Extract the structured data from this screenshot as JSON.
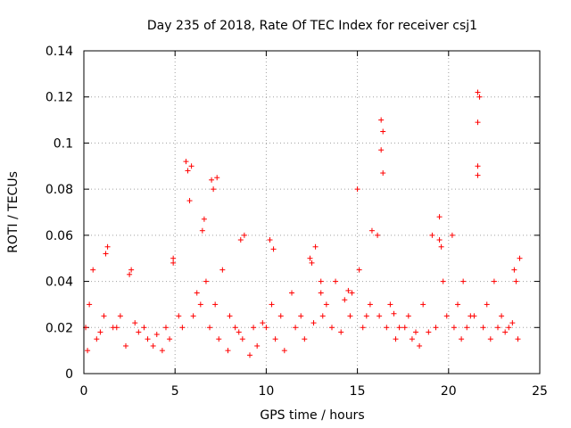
{
  "chart_data": {
    "type": "scatter",
    "title": "Day 235 of 2018, Rate Of TEC Index for receiver csj1",
    "xlabel": "GPS time / hours",
    "ylabel": "ROTI / TECUs",
    "xlim": [
      0,
      25
    ],
    "ylim": [
      0,
      0.14
    ],
    "xticks": [
      0,
      5,
      10,
      15,
      20,
      25
    ],
    "xtick_labels": [
      "0",
      "5",
      "10",
      "15",
      "20",
      "25"
    ],
    "yticks": [
      0,
      0.02,
      0.04,
      0.06,
      0.08,
      0.1,
      0.12,
      0.14
    ],
    "ytick_labels": [
      "0",
      "0.02",
      "0.04",
      "0.06",
      "0.08",
      "0.1",
      "0.12",
      "0.14"
    ],
    "grid": true,
    "marker": "+",
    "color": "#ff0000",
    "series": [
      {
        "name": "ROTI",
        "x": [
          0.1,
          0.3,
          0.5,
          0.9,
          1.3,
          1.6,
          2.0,
          2.5,
          3.0,
          3.5,
          4.0,
          4.5,
          4.9,
          5.2,
          5.6,
          5.7,
          5.8,
          6.2,
          6.5,
          6.7,
          7.0,
          7.1,
          7.2,
          7.6,
          8.0,
          8.5,
          8.8,
          9.3,
          9.8,
          10.2,
          10.3,
          10.8,
          11.4,
          11.9,
          12.4,
          12.7,
          13.0,
          13.3,
          13.8,
          14.3,
          14.7,
          15.0,
          15.1,
          15.5,
          15.8,
          16.1,
          16.3,
          16.4,
          16.8,
          17.3,
          17.8,
          18.2,
          18.6,
          19.1,
          19.5,
          19.6,
          19.7,
          20.2,
          20.5,
          20.8,
          21.2,
          21.6,
          21.7,
          22.1,
          22.5,
          22.9,
          23.3,
          23.6,
          23.9,
          0.2,
          0.7,
          1.1,
          1.8,
          2.3,
          2.8,
          3.3,
          3.8,
          4.3,
          4.7,
          5.4,
          6.0,
          6.4,
          6.9,
          7.4,
          7.9,
          8.3,
          8.7,
          9.1,
          9.5,
          10.0,
          10.5,
          11.0,
          11.6,
          12.1,
          12.6,
          13.1,
          13.6,
          14.1,
          14.6,
          15.3,
          15.7,
          16.2,
          16.6,
          17.1,
          17.6,
          18.0,
          18.4,
          18.9,
          19.3,
          19.9,
          20.3,
          20.7,
          21.0,
          21.4,
          21.9,
          22.3,
          22.7,
          23.1,
          23.5,
          23.8,
          1.2,
          2.6,
          4.9,
          5.9,
          6.6,
          7.3,
          8.6,
          10.4,
          12.5,
          13.0,
          14.5,
          16.3,
          16.4,
          17.0,
          19.5,
          21.6,
          21.6,
          21.6,
          23.7
        ],
        "y": [
          0.02,
          0.03,
          0.045,
          0.018,
          0.055,
          0.02,
          0.025,
          0.043,
          0.018,
          0.015,
          0.017,
          0.02,
          0.048,
          0.025,
          0.092,
          0.088,
          0.075,
          0.035,
          0.062,
          0.04,
          0.084,
          0.08,
          0.03,
          0.045,
          0.025,
          0.018,
          0.06,
          0.02,
          0.022,
          0.058,
          0.03,
          0.025,
          0.035,
          0.025,
          0.05,
          0.055,
          0.035,
          0.03,
          0.04,
          0.032,
          0.035,
          0.08,
          0.045,
          0.025,
          0.062,
          0.06,
          0.11,
          0.105,
          0.03,
          0.02,
          0.025,
          0.018,
          0.03,
          0.06,
          0.068,
          0.055,
          0.04,
          0.06,
          0.03,
          0.04,
          0.025,
          0.122,
          0.12,
          0.03,
          0.04,
          0.025,
          0.02,
          0.045,
          0.05,
          0.01,
          0.015,
          0.025,
          0.02,
          0.012,
          0.022,
          0.02,
          0.012,
          0.01,
          0.015,
          0.02,
          0.025,
          0.03,
          0.02,
          0.015,
          0.01,
          0.02,
          0.015,
          0.008,
          0.012,
          0.02,
          0.015,
          0.01,
          0.02,
          0.015,
          0.022,
          0.025,
          0.02,
          0.018,
          0.025,
          0.02,
          0.03,
          0.025,
          0.02,
          0.015,
          0.02,
          0.015,
          0.012,
          0.018,
          0.02,
          0.025,
          0.02,
          0.015,
          0.02,
          0.025,
          0.02,
          0.015,
          0.02,
          0.018,
          0.022,
          0.015,
          0.052,
          0.045,
          0.05,
          0.09,
          0.067,
          0.085,
          0.058,
          0.054,
          0.048,
          0.04,
          0.036,
          0.097,
          0.087,
          0.026,
          0.058,
          0.109,
          0.09,
          0.086,
          0.04
        ]
      }
    ]
  }
}
